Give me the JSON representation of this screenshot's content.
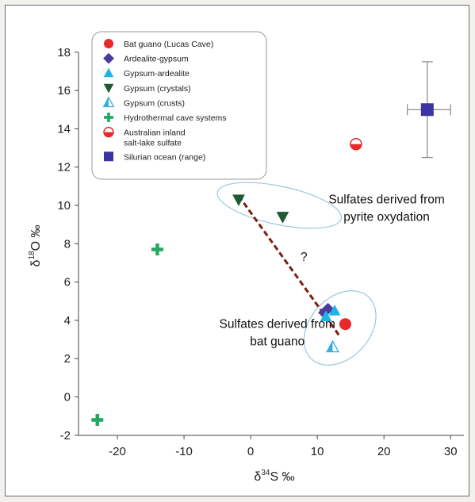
{
  "chart_data": {
    "type": "scatter",
    "title": "",
    "xlabel": "δ34S ‰",
    "ylabel": "δ18O ‰",
    "xlim": [
      -26,
      32
    ],
    "ylim": [
      -2,
      18
    ],
    "xticks": [
      -20,
      -10,
      0,
      10,
      20,
      30
    ],
    "yticks": [
      -2,
      0,
      2,
      4,
      6,
      8,
      10,
      12,
      14,
      16,
      18
    ],
    "xtick_labels": [
      "-20",
      "-10",
      "0",
      "10",
      "20",
      "30"
    ],
    "ytick_labels": [
      "-2",
      "0",
      "2",
      "4",
      "6",
      "8",
      "10",
      "12",
      "14",
      "16",
      "18"
    ],
    "grid": false,
    "legend_position": "top-left",
    "series": [
      {
        "name": "Bat guano (Lucas Cave)",
        "marker": "circle",
        "color": "#e8282b",
        "points": [
          {
            "x": 14.2,
            "y": 3.8
          }
        ]
      },
      {
        "name": "Ardealite-gypsum",
        "marker": "diamond",
        "color": "#4a3b9c",
        "points": [
          {
            "x": 11.0,
            "y": 4.4
          },
          {
            "x": 11.6,
            "y": 4.6
          }
        ]
      },
      {
        "name": "Gypsum-ardealite",
        "marker": "triangle-up",
        "color": "#1eb4e6",
        "points": [
          {
            "x": 11.3,
            "y": 4.2
          },
          {
            "x": 12.6,
            "y": 4.5
          }
        ]
      },
      {
        "name": "Gypsum (crystals)",
        "marker": "triangle-down",
        "color": "#1f5a32",
        "points": [
          {
            "x": -1.8,
            "y": 10.3
          },
          {
            "x": 4.8,
            "y": 9.4
          }
        ]
      },
      {
        "name": "Gypsum (crusts)",
        "marker": "triangle-half",
        "color": "#3aaed8",
        "points": [
          {
            "x": 12.3,
            "y": 2.6
          }
        ]
      },
      {
        "name": "Hydrothermal cave systems",
        "marker": "plus",
        "color": "#22a860",
        "points": [
          {
            "x": -14.0,
            "y": 7.7
          },
          {
            "x": -23.0,
            "y": -1.2
          }
        ]
      },
      {
        "name": "Australian inland salt-lake sulfate",
        "marker": "circle-half",
        "color": "#e8282b",
        "points": [
          {
            "x": 15.8,
            "y": 13.2
          }
        ]
      },
      {
        "name": "Silurian ocean (range)",
        "marker": "square",
        "color": "#3a33a0",
        "points": [
          {
            "x": 26.5,
            "y": 15.0
          }
        ],
        "x_range": [
          23.5,
          30.0
        ],
        "y_range": [
          12.5,
          17.5
        ]
      }
    ],
    "trend_line": {
      "from": {
        "x": -1.8,
        "y": 10.5
      },
      "to": {
        "x": 13.3,
        "y": 3.2
      },
      "color": "#7a1e10",
      "style": "dashed"
    },
    "ellipses": [
      {
        "cx": 4.3,
        "cy": 10.0,
        "rx_data": 9.5,
        "ry_data": 1.0,
        "rotation_deg": 12
      },
      {
        "cx": 13.4,
        "cy": 3.6,
        "rx_data": 4.5,
        "ry_data": 2.2,
        "rotation_deg": 42
      }
    ],
    "annotations": [
      {
        "text": "Sulfates derived from",
        "x": 20.4,
        "y": 10.1
      },
      {
        "text": "pyrite oxydation",
        "x": 20.4,
        "y": 9.2
      },
      {
        "text": "?",
        "x": 8.0,
        "y": 7.1
      },
      {
        "text": "Sulfates derived from",
        "x": 4.0,
        "y": 3.6
      },
      {
        "text": "bat guano",
        "x": 4.0,
        "y": 2.7
      }
    ]
  }
}
